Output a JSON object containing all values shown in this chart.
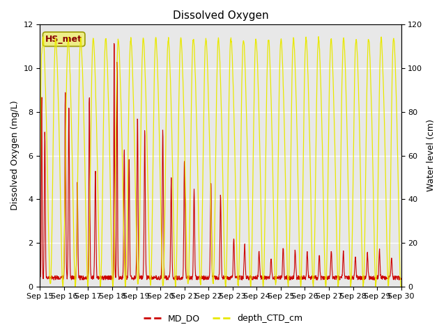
{
  "title": "Dissolved Oxygen",
  "ylabel_left": "Dissolved Oxygen (mg/L)",
  "ylabel_right": "Water level (cm)",
  "ylim_left": [
    0,
    12
  ],
  "ylim_right": [
    0,
    120
  ],
  "yticks_left": [
    0,
    2,
    4,
    6,
    8,
    10,
    12
  ],
  "yticks_right": [
    0,
    20,
    40,
    60,
    80,
    100,
    120
  ],
  "xlabel_dates": [
    "Sep 15",
    "Sep 16",
    "Sep 17",
    "Sep 18",
    "Sep 19",
    "Sep 20",
    "Sep 21",
    "Sep 22",
    "Sep 23",
    "Sep 24",
    "Sep 25",
    "Sep 26",
    "Sep 27",
    "Sep 28",
    "Sep 29",
    "Sep 30"
  ],
  "md_do_color": "#cc0000",
  "depth_ctd_color": "#e8e800",
  "annotation_text": "HS_met",
  "annotation_bbox_facecolor": "#eeee88",
  "annotation_bbox_edgecolor": "#999900",
  "plot_bg_color": "#e8e8e8",
  "grid_color": "#ffffff",
  "title_fontsize": 11,
  "axis_label_fontsize": 9,
  "tick_fontsize": 8,
  "legend_fontsize": 9
}
